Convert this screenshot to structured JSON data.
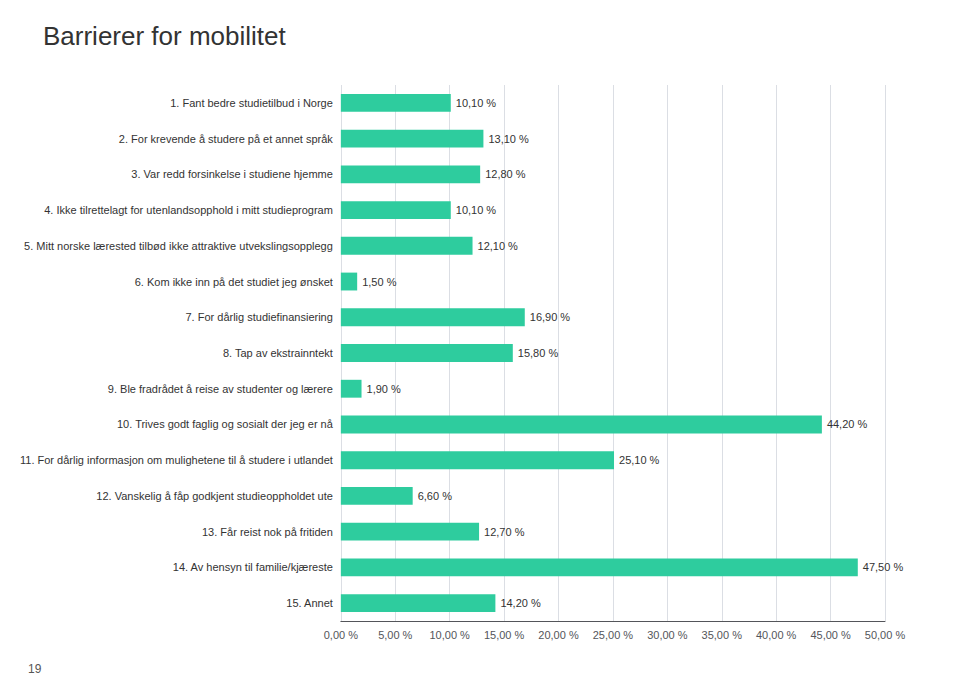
{
  "chart_data": {
    "type": "bar",
    "orientation": "horizontal",
    "title": "Barrierer for mobilitet",
    "categories": [
      "15. Annet",
      "14. Av hensyn til familie/kjæreste",
      "13. Får reist nok på fritiden",
      "12. Vanskelig å fåp godkjent studieoppholdet ute",
      "11. For dårlig informasjon om mulighetene til å studere i utlandet",
      "10. Trives godt faglig og sosialt der jeg er nå",
      "9. Ble fradrådet å reise av studenter og lærere",
      "8. Tap av ekstrainntekt",
      "7. For dårlig studiefinansiering",
      "6. Kom ikke inn på det studiet jeg ønsket",
      "5. Mitt norske lærested tilbød ikke attraktive utvekslingsopplegg",
      "4. Ikke tilrettelagt for utenlandsopphold i mitt studieprogram",
      "3. Var redd forsinkelse i studiene hjemme",
      "2. For krevende å studere på et annet språk",
      "1. Fant bedre studietilbud i Norge"
    ],
    "values": [
      14.2,
      47.5,
      12.7,
      6.6,
      25.1,
      44.2,
      1.9,
      15.8,
      16.9,
      1.5,
      12.1,
      10.1,
      12.8,
      13.1,
      10.1
    ],
    "value_labels": [
      "14,20 %",
      "47,50 %",
      "12,70 %",
      "6,60 %",
      "25,10 %",
      "44,20 %",
      "1,90 %",
      "15,80 %",
      "16,90 %",
      "1,50 %",
      "12,10 %",
      "10,10 %",
      "12,80 %",
      "13,10 %",
      "10,10 %"
    ],
    "data_labels": true,
    "color": "#2ecc9e",
    "xlim": [
      0,
      50
    ],
    "xticks": [
      {
        "value": 0,
        "label": "0,00 %"
      },
      {
        "value": 5,
        "label": "5,00 %"
      },
      {
        "value": 10,
        "label": "10,00 %"
      },
      {
        "value": 15,
        "label": "15,00 %"
      },
      {
        "value": 20,
        "label": "20,00 %"
      },
      {
        "value": 25,
        "label": "25,00 %"
      },
      {
        "value": 30,
        "label": "30,00 %"
      },
      {
        "value": 35,
        "label": "35,00 %"
      },
      {
        "value": 40,
        "label": "40,00 %"
      },
      {
        "value": 45,
        "label": "45,00 %"
      },
      {
        "value": 50,
        "label": "50,00 %"
      }
    ],
    "grid": true,
    "annotations": [
      "19"
    ]
  }
}
